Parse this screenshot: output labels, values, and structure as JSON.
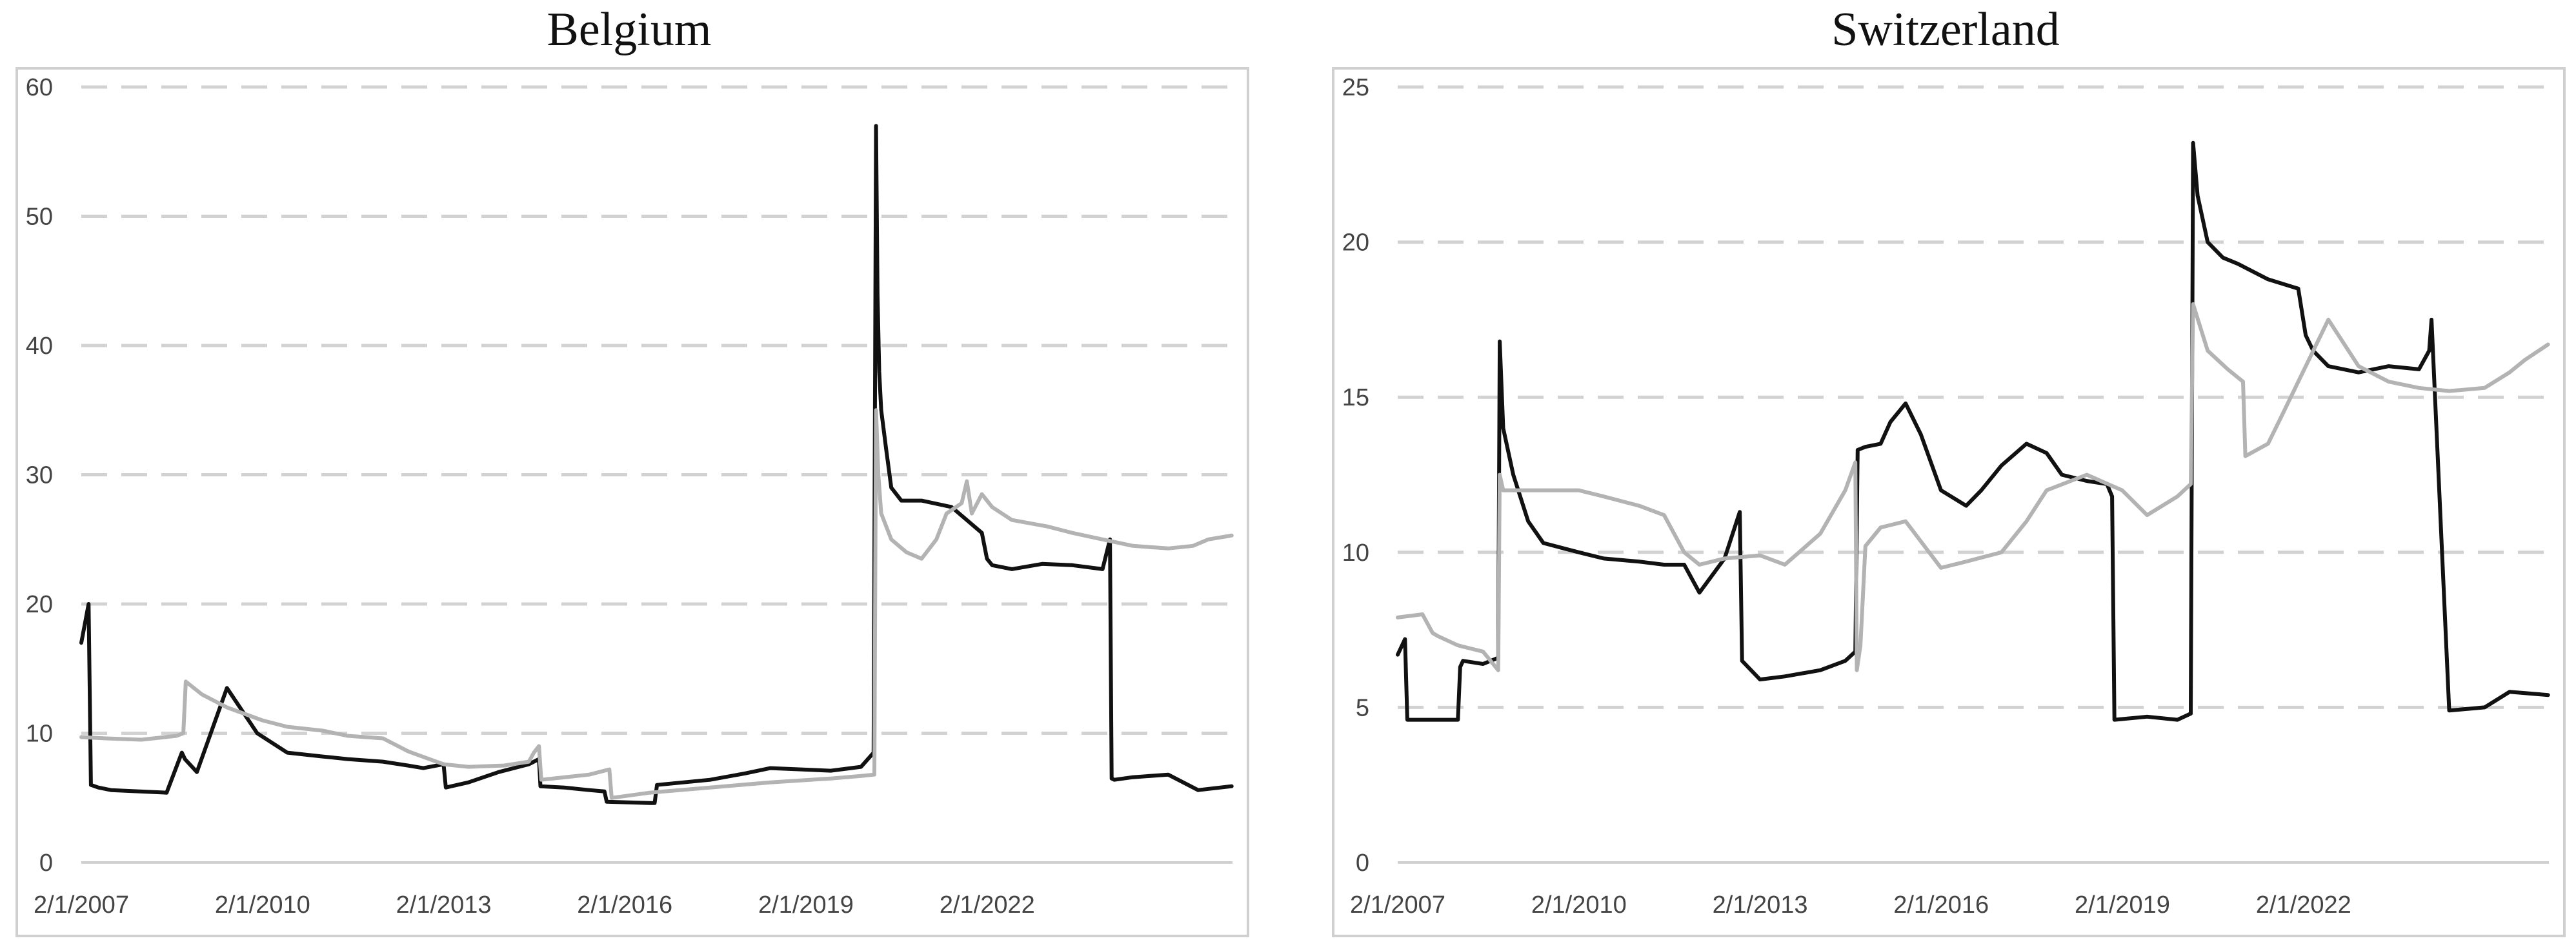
{
  "chart_data": [
    {
      "type": "line",
      "title": "Belgium",
      "xlabel": "",
      "ylabel": "",
      "ylim": [
        0,
        60
      ],
      "yticks": [
        0,
        10,
        20,
        30,
        40,
        50,
        60
      ],
      "xlim": [
        "2007-01-02",
        "2026-01-25"
      ],
      "xticks": [
        "2/1/2007",
        "2/1/2010",
        "2/1/2013",
        "2/1/2016",
        "2/1/2019",
        "2/1/2022"
      ],
      "grid": true,
      "legend": "none",
      "series": [
        {
          "color": "#111111",
          "x": [
            "2007-01-02",
            "2007-02-15",
            "2007-03-01",
            "2007-04-15",
            "2007-07-01",
            "2008-06-01",
            "2008-09-01",
            "2008-09-20",
            "2008-12-01",
            "2009-06-01",
            "2009-12-01",
            "2010-06-01",
            "2011-01-01",
            "2011-06-01",
            "2012-01-01",
            "2012-06-01",
            "2012-09-01",
            "2013-01-01",
            "2013-01-15",
            "2013-06-01",
            "2013-12-01",
            "2014-06-01",
            "2014-08-01",
            "2014-08-10",
            "2015-01-01",
            "2015-06-01",
            "2015-09-01",
            "2015-09-15",
            "2016-06-01",
            "2016-07-01",
            "2016-07-15",
            "2017-06-01",
            "2018-01-01",
            "2018-06-01",
            "2019-06-01",
            "2019-12-01",
            "2020-02-15",
            "2020-03-01",
            "2020-03-10",
            "2020-03-20",
            "2020-04-01",
            "2020-05-01",
            "2020-06-01",
            "2020-08-01",
            "2020-12-01",
            "2021-06-01",
            "2021-12-01",
            "2022-01-01",
            "2022-02-01",
            "2022-06-01",
            "2022-12-01",
            "2023-06-01",
            "2023-12-01",
            "2024-01-15",
            "2024-01-25",
            "2024-02-10",
            "2024-06-01",
            "2025-01-01",
            "2025-07-01",
            "2026-01-20"
          ],
          "y": [
            17,
            20,
            6,
            5.8,
            5.6,
            5.4,
            8.5,
            8,
            7,
            13.5,
            10,
            8.5,
            8.2,
            8,
            7.8,
            7.5,
            7.3,
            7.6,
            5.8,
            6.2,
            7,
            7.6,
            8,
            5.9,
            5.8,
            5.6,
            5.5,
            4.7,
            4.6,
            4.6,
            6,
            6.4,
            6.9,
            7.3,
            7.1,
            7.4,
            8.5,
            57,
            44,
            38,
            35,
            32,
            29,
            28,
            28,
            27.5,
            25.5,
            23.5,
            23,
            22.7,
            23.1,
            23,
            22.7,
            25,
            6.5,
            6.4,
            6.6,
            6.8,
            5.6,
            5.9
          ]
        },
        {
          "color": "#b3b3b3",
          "x": [
            "2007-01-02",
            "2007-06-01",
            "2008-01-01",
            "2008-08-01",
            "2008-09-10",
            "2008-09-25",
            "2009-01-01",
            "2009-06-01",
            "2010-01-01",
            "2010-06-01",
            "2011-01-01",
            "2011-06-01",
            "2012-01-01",
            "2012-06-01",
            "2013-01-01",
            "2013-06-01",
            "2014-01-01",
            "2014-06-01",
            "2014-07-01",
            "2014-08-01",
            "2014-08-15",
            "2015-06-01",
            "2015-10-01",
            "2015-10-15",
            "2016-06-01",
            "2017-06-01",
            "2018-06-01",
            "2019-06-01",
            "2019-12-01",
            "2020-02-20",
            "2020-03-01",
            "2020-03-15",
            "2020-04-01",
            "2020-06-01",
            "2020-09-01",
            "2020-12-01",
            "2021-03-01",
            "2021-05-01",
            "2021-08-01",
            "2021-09-01",
            "2021-10-01",
            "2021-12-01",
            "2022-02-01",
            "2022-06-01",
            "2023-01-01",
            "2023-06-01",
            "2023-12-01",
            "2024-06-01",
            "2025-01-01",
            "2025-06-01",
            "2025-09-01",
            "2026-01-20"
          ],
          "y": [
            9.7,
            9.6,
            9.5,
            9.8,
            10,
            14,
            13,
            12,
            11,
            10.5,
            10.2,
            9.8,
            9.6,
            8.6,
            7.6,
            7.4,
            7.5,
            7.8,
            8.5,
            9,
            6.4,
            6.8,
            7.2,
            5,
            5.4,
            5.8,
            6.2,
            6.5,
            6.7,
            6.8,
            35,
            30,
            27,
            25,
            24,
            23.5,
            25,
            27,
            27.8,
            29.5,
            27,
            28.5,
            27.5,
            26.5,
            26,
            25.5,
            25,
            24.5,
            24.3,
            24.5,
            25,
            25.3
          ]
        }
      ]
    },
    {
      "type": "line",
      "title": "Switzerland",
      "xlabel": "",
      "ylabel": "",
      "ylim": [
        0,
        25
      ],
      "yticks": [
        0,
        5,
        10,
        15,
        20,
        25
      ],
      "xlim": [
        "2007-01-02",
        "2026-01-25"
      ],
      "xticks": [
        "2/1/2007",
        "2/1/2010",
        "2/1/2013",
        "2/1/2016",
        "2/1/2019",
        "2/1/2022"
      ],
      "grid": true,
      "legend": "none",
      "series": [
        {
          "color": "#111111",
          "x": [
            "2007-01-02",
            "2007-02-15",
            "2007-03-01",
            "2007-06-01",
            "2008-01-01",
            "2008-01-15",
            "2008-02-01",
            "2008-06-01",
            "2008-09-01",
            "2008-09-10",
            "2008-10-01",
            "2008-12-01",
            "2009-03-01",
            "2009-06-01",
            "2010-01-01",
            "2010-06-01",
            "2011-01-01",
            "2011-06-01",
            "2011-08-01",
            "2011-10-01",
            "2012-01-01",
            "2012-06-01",
            "2012-09-01",
            "2012-09-15",
            "2013-01-01",
            "2013-06-01",
            "2014-01-01",
            "2014-06-01",
            "2014-08-01",
            "2014-08-15",
            "2014-10-01",
            "2015-01-01",
            "2015-03-01",
            "2015-06-01",
            "2015-09-01",
            "2016-01-01",
            "2016-06-01",
            "2016-09-01",
            "2017-01-01",
            "2017-06-01",
            "2017-10-01",
            "2018-01-01",
            "2018-06-01",
            "2018-10-01",
            "2018-11-01",
            "2018-11-15",
            "2019-06-01",
            "2019-12-01",
            "2020-02-20",
            "2020-03-05",
            "2020-04-01",
            "2020-06-01",
            "2020-09-01",
            "2020-12-01",
            "2021-06-01",
            "2021-12-01",
            "2022-01-15",
            "2022-03-01",
            "2022-06-01",
            "2022-12-01",
            "2023-06-01",
            "2023-12-01",
            "2024-02-01",
            "2024-02-15",
            "2024-06-01",
            "2025-01-01",
            "2025-06-01",
            "2026-01-20"
          ],
          "y": [
            6.7,
            7.2,
            4.6,
            4.6,
            4.6,
            6.3,
            6.5,
            6.4,
            6.6,
            16.8,
            14,
            12.5,
            11,
            10.3,
            10,
            9.8,
            9.7,
            9.6,
            9.6,
            9.6,
            8.7,
            9.8,
            11.3,
            6.5,
            5.9,
            6,
            6.2,
            6.5,
            6.8,
            13.3,
            13.4,
            13.5,
            14.2,
            14.8,
            13.8,
            12,
            11.5,
            12,
            12.8,
            13.5,
            13.2,
            12.5,
            12.3,
            12.2,
            11.8,
            4.6,
            4.7,
            4.6,
            4.8,
            23.2,
            21.5,
            20,
            19.5,
            19.3,
            18.8,
            18.5,
            17,
            16.5,
            16,
            15.8,
            16,
            15.9,
            16.5,
            17.5,
            4.9,
            5,
            5.5,
            5.4
          ]
        },
        {
          "color": "#b3b3b3",
          "x": [
            "2007-01-02",
            "2007-06-01",
            "2007-08-01",
            "2007-09-01",
            "2008-01-01",
            "2008-06-01",
            "2008-09-01",
            "2008-09-10",
            "2008-10-01",
            "2009-01-01",
            "2009-06-01",
            "2010-01-01",
            "2010-06-01",
            "2011-01-01",
            "2011-06-01",
            "2011-10-01",
            "2012-01-01",
            "2012-06-01",
            "2013-01-01",
            "2013-06-01",
            "2014-01-01",
            "2014-06-01",
            "2014-08-01",
            "2014-08-10",
            "2014-09-01",
            "2014-10-01",
            "2015-01-01",
            "2015-06-01",
            "2016-01-01",
            "2016-06-01",
            "2017-01-01",
            "2017-06-01",
            "2017-10-01",
            "2018-06-01",
            "2019-01-01",
            "2019-06-01",
            "2019-12-01",
            "2020-02-20",
            "2020-03-05",
            "2020-06-01",
            "2020-10-01",
            "2021-01-01",
            "2021-01-15",
            "2021-06-01",
            "2021-09-01",
            "2021-12-01",
            "2022-06-01",
            "2022-12-01",
            "2023-06-01",
            "2023-12-01",
            "2024-06-01",
            "2025-01-01",
            "2025-06-01",
            "2025-09-01",
            "2026-01-20"
          ],
          "y": [
            7.9,
            8.0,
            7.4,
            7.3,
            7.0,
            6.8,
            6.2,
            12.5,
            12.0,
            12.0,
            12.0,
            12.0,
            11.8,
            11.5,
            11.2,
            10.0,
            9.6,
            9.8,
            9.9,
            9.6,
            10.6,
            12.0,
            12.9,
            6.2,
            7.0,
            10.2,
            10.8,
            11.0,
            9.5,
            9.7,
            10.0,
            11.0,
            12.0,
            12.5,
            12.0,
            11.2,
            11.8,
            12.2,
            18.0,
            16.5,
            15.9,
            15.5,
            13.1,
            13.5,
            14.5,
            15.5,
            17.5,
            16.0,
            15.5,
            15.3,
            15.2,
            15.3,
            15.8,
            16.2,
            16.7
          ]
        }
      ]
    }
  ]
}
